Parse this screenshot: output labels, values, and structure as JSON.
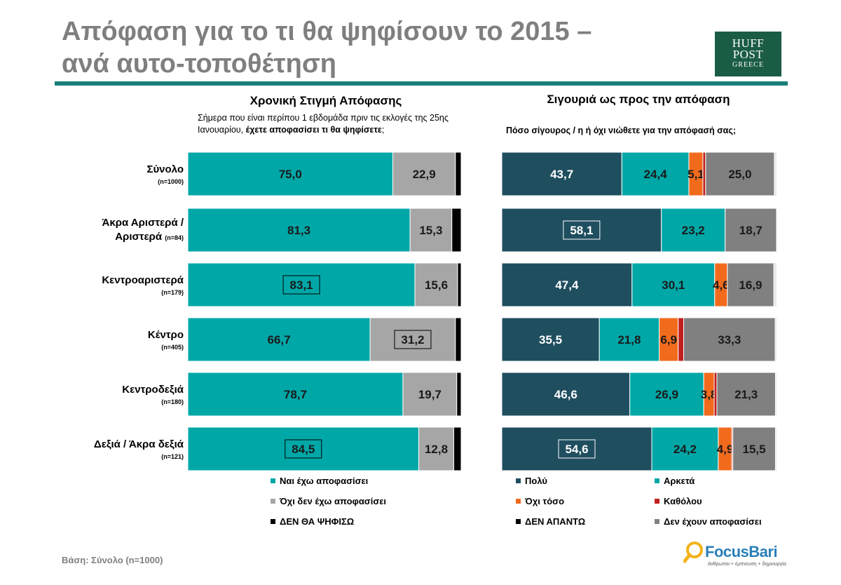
{
  "title_line1": "Απόφαση για το τι θα ψηφίσουν το 2015 –",
  "title_line2": "ανά αυτο-τοποθέτηση",
  "logo": {
    "line1": "HUFF",
    "line2": "POST",
    "line3": "GREECE",
    "bg": "#1b5c45"
  },
  "footer": "Βάση: Σύνολο (n=1000)",
  "brand": {
    "name": "FocusBari",
    "tagline": "άνθρωποι + έμπνευση + δημιουργία"
  },
  "colors": {
    "teal": "#00a7a7",
    "grey": "#a6a6a6",
    "black": "#000000",
    "darkteal": "#1f4e5f",
    "orange": "#f26b1d",
    "red": "#c0201f",
    "darkgrey": "#808080",
    "titlegrey": "#7f7f7f",
    "rule": "#1a7f7a"
  },
  "chart_data": [
    {
      "type": "bar",
      "orientation": "horizontal",
      "stacked": true,
      "title": "Χρονική Στιγμή Απόφασης",
      "question_plain": "Σήμερα που είναι περίπου 1 εβδομάδα πριν τις εκλογές της 25ης Ιανουαρίου, ",
      "question_bold": "έχετε αποφασίσει τι θα ψηφίσετε",
      "question_end": ";",
      "categories": [
        {
          "line1": "Σύνολο",
          "line2": "",
          "n": "(n=1000)"
        },
        {
          "line1": "Άκρα Αριστερά /",
          "line2": "Αριστερά",
          "n": "(n=84)"
        },
        {
          "line1": "Κεντροαριστερά",
          "line2": "",
          "n": "(n=179)"
        },
        {
          "line1": "Κέντρο",
          "line2": "",
          "n": "(n=405)"
        },
        {
          "line1": "Κεντροδεξιά",
          "line2": "",
          "n": "(n=180)"
        },
        {
          "line1": "Δεξιά / Άκρα δεξιά",
          "line2": "",
          "n": "(n=121)"
        }
      ],
      "series": [
        {
          "name": "Ναι έχω αποφασίσει",
          "color": "#00a7a7",
          "values": [
            75.0,
            81.3,
            83.1,
            66.7,
            78.7,
            84.5
          ],
          "labels": [
            "75,0",
            "81,3",
            "83,1",
            "66,7",
            "78,7",
            "84,5"
          ],
          "boxed": [
            false,
            false,
            true,
            false,
            false,
            true
          ]
        },
        {
          "name": "Όχι δεν έχω αποφασίσει",
          "color": "#a6a6a6",
          "values": [
            22.9,
            15.3,
            15.6,
            31.2,
            19.7,
            12.8
          ],
          "labels": [
            "22,9",
            "15,3",
            "15,6",
            "31,2",
            "19,7",
            "12,8"
          ],
          "boxed": [
            false,
            false,
            false,
            true,
            false,
            false
          ]
        },
        {
          "name": "ΔΕΝ ΘΑ ΨΗΦΙΣΩ",
          "color": "#000000",
          "values": [
            2.1,
            3.4,
            1.3,
            2.1,
            1.6,
            2.7
          ],
          "labels": [
            "",
            "",
            "",
            "",
            "",
            ""
          ],
          "boxed": [
            false,
            false,
            false,
            false,
            false,
            false
          ]
        }
      ],
      "xlim": [
        0,
        100
      ]
    },
    {
      "type": "bar",
      "orientation": "horizontal",
      "stacked": true,
      "title": "Σιγουριά ως προς την απόφαση",
      "question_plain": "",
      "question_bold": "Πόσο σίγουρος / η ή όχι νιώθετε για την απόφασή σας",
      "question_end": ";",
      "categories": [
        {
          "line1": "Σύνολο",
          "line2": "",
          "n": "(n=1000)"
        },
        {
          "line1": "Άκρα Αριστερά /",
          "line2": "Αριστερά",
          "n": "(n=84)"
        },
        {
          "line1": "Κεντροαριστερά",
          "line2": "",
          "n": "(n=179)"
        },
        {
          "line1": "Κέντρο",
          "line2": "",
          "n": "(n=405)"
        },
        {
          "line1": "Κεντροδεξιά",
          "line2": "",
          "n": "(n=180)"
        },
        {
          "line1": "Δεξιά / Άκρα δεξιά",
          "line2": "",
          "n": "(n=121)"
        }
      ],
      "series": [
        {
          "name": "Πολύ",
          "color": "#1f4e5f",
          "values": [
            43.7,
            58.1,
            47.4,
            35.5,
            46.6,
            54.6
          ],
          "labels": [
            "43,7",
            "58,1",
            "47,4",
            "35,5",
            "46,6",
            "54,6"
          ],
          "boxed": [
            false,
            true,
            false,
            false,
            false,
            true
          ]
        },
        {
          "name": "Αρκετά",
          "color": "#00a7a7",
          "values": [
            24.4,
            23.2,
            30.1,
            21.8,
            26.9,
            24.2
          ],
          "labels": [
            "24,4",
            "23,2",
            "30,1",
            "21,8",
            "26,9",
            "24,2"
          ],
          "boxed": [
            false,
            false,
            false,
            false,
            false,
            false
          ]
        },
        {
          "name": "Όχι τόσο",
          "color": "#f26b1d",
          "values": [
            5.1,
            0,
            4.6,
            6.9,
            3.8,
            4.9
          ],
          "labels": [
            "5,1",
            "",
            "4,6",
            "6,9",
            "3,8",
            "4,9"
          ],
          "boxed": [
            false,
            false,
            false,
            false,
            false,
            false
          ]
        },
        {
          "name": "Καθόλου",
          "color": "#c0201f",
          "values": [
            1.0,
            0,
            0,
            2.0,
            1.0,
            0.4
          ],
          "labels": [
            "",
            "",
            "",
            "",
            "",
            ""
          ],
          "boxed": [
            false,
            false,
            false,
            false,
            false,
            false
          ]
        },
        {
          "name": "ΔΕΝ ΑΠΑΝΤΩ",
          "color": "#000000",
          "values": [
            0,
            0,
            0,
            0,
            0,
            0
          ],
          "labels": [
            "",
            "",
            "",
            "",
            "",
            ""
          ],
          "boxed": [
            false,
            false,
            false,
            false,
            false,
            false
          ]
        },
        {
          "name": "Δεν έχουν αποφασίσει",
          "color": "#808080",
          "values": [
            25.0,
            18.7,
            16.9,
            33.3,
            21.3,
            15.5
          ],
          "labels": [
            "25,0",
            "18,7",
            "16,9",
            "33,3",
            "21,3",
            "15,5"
          ],
          "boxed": [
            false,
            false,
            false,
            false,
            false,
            false
          ]
        }
      ],
      "xlim": [
        0,
        100
      ]
    }
  ]
}
